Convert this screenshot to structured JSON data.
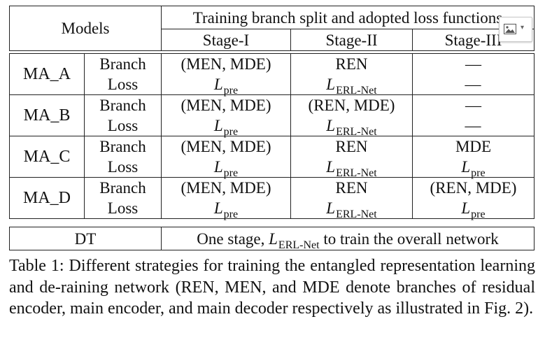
{
  "table": {
    "header": {
      "models_label": "Models",
      "span_title": "Training branch split and adopted loss functions",
      "stages": [
        "Stage-I",
        "Stage-II",
        "Stage-III"
      ]
    },
    "kinds": {
      "branch": "Branch",
      "loss": "Loss"
    },
    "rows": [
      {
        "model": "MA_A",
        "branch": [
          "(MEN, MDE)",
          "REN",
          "—"
        ],
        "loss": [
          {
            "sym": "L",
            "sub": "pre"
          },
          {
            "sym": "L",
            "sub": "ERL-Net"
          },
          {
            "sym": "—",
            "sub": ""
          }
        ]
      },
      {
        "model": "MA_B",
        "branch": [
          "(MEN, MDE)",
          "(REN, MDE)",
          "—"
        ],
        "loss": [
          {
            "sym": "L",
            "sub": "pre"
          },
          {
            "sym": "L",
            "sub": "ERL-Net"
          },
          {
            "sym": "—",
            "sub": ""
          }
        ]
      },
      {
        "model": "MA_C",
        "branch": [
          "(MEN, MDE)",
          "REN",
          "MDE"
        ],
        "loss": [
          {
            "sym": "L",
            "sub": "pre"
          },
          {
            "sym": "L",
            "sub": "ERL-Net"
          },
          {
            "sym": "L",
            "sub": "pre"
          }
        ]
      },
      {
        "model": "MA_D",
        "branch": [
          "(MEN, MDE)",
          "REN",
          "(REN, MDE)"
        ],
        "loss": [
          {
            "sym": "L",
            "sub": "pre"
          },
          {
            "sym": "L",
            "sub": "ERL-Net"
          },
          {
            "sym": "L",
            "sub": "pre"
          }
        ]
      }
    ],
    "dt": {
      "label": "DT",
      "text_before": "One stage, ",
      "sym": "L",
      "sub": "ERL-Net",
      "text_after": " to train the overall network"
    }
  },
  "caption": "Table 1: Different strategies for training the entangled representation learning and de-raining network (REN, MEN, and MDE denote branches of residual encoder, main encoder, and main decoder respectively as illustrated in Fig. 2).",
  "overlay": {
    "icon": "image-icon",
    "caret": "▾"
  }
}
